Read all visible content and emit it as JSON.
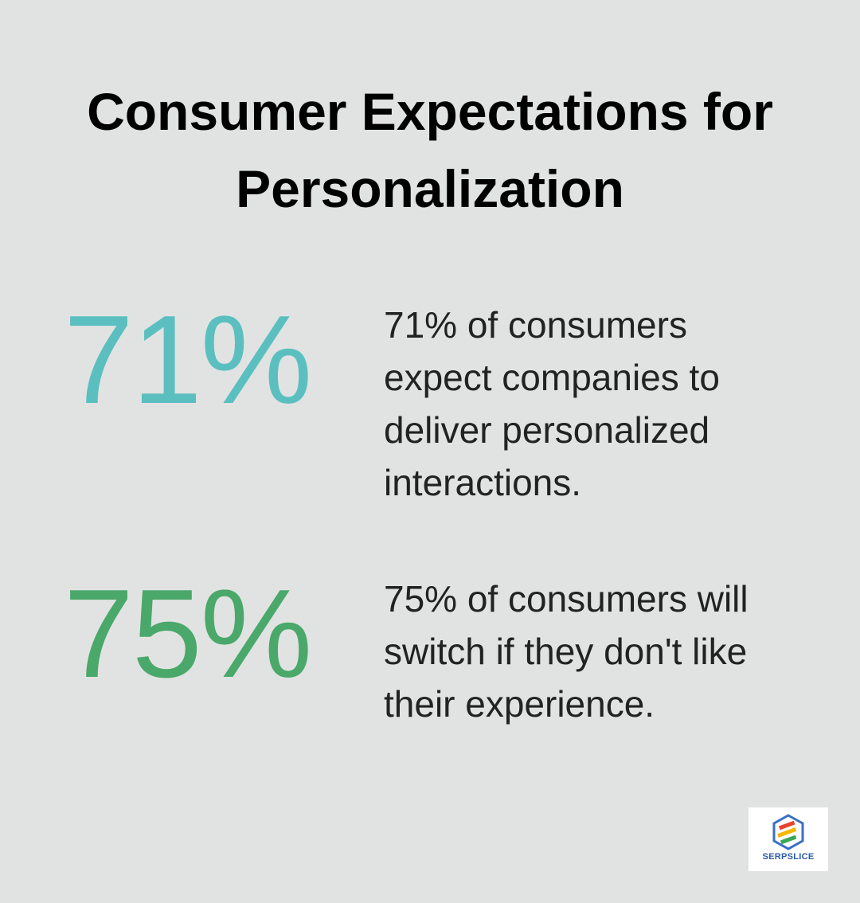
{
  "title": "Consumer Expectations for Personalization",
  "stats": [
    {
      "value": "71%",
      "text": "71% of consumers expect companies to deliver personalized interactions."
    },
    {
      "value": "75%",
      "text": "75% of consumers will switch if they don't like their experience."
    }
  ],
  "logo": {
    "text": "SERPSLICE"
  }
}
